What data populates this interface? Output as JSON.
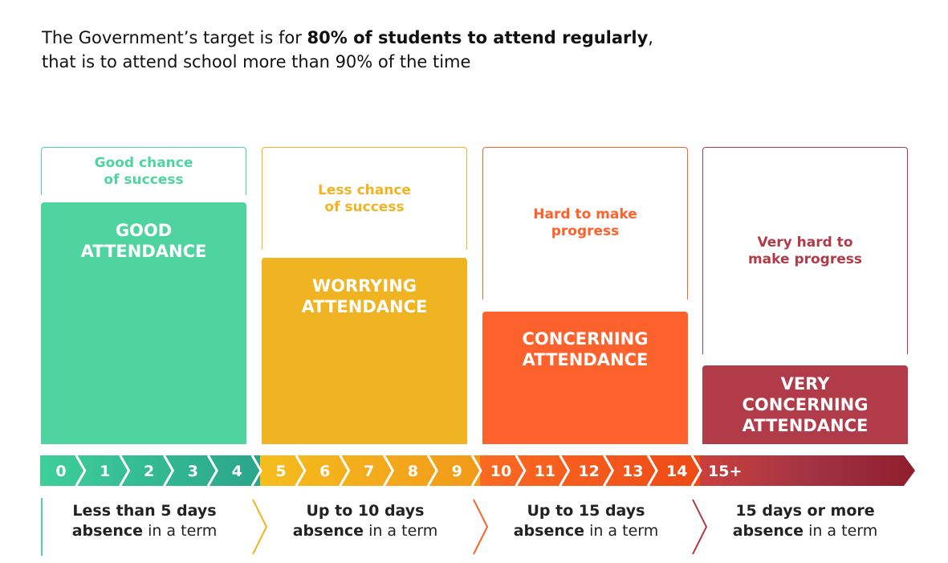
{
  "headline": {
    "prefix": "The Government’s target is for ",
    "bold": "80% of students to attend regularly",
    "suffix": ",",
    "line2": "that is to attend school more than 90% of the time"
  },
  "colors": {
    "good": "#4fd49f",
    "worrying": "#f0b321",
    "concerning": "#fd612c",
    "very_concerning": "#b13b48"
  },
  "categories": [
    {
      "chance_line1": "Good chance",
      "chance_line2": "of success",
      "label_line1": "GOOD",
      "label_line2": "ATTENDANCE",
      "label_line3": "",
      "desc_bold1": "Less than 5 days",
      "desc_bold2": "absence",
      "desc_rest": " in a term"
    },
    {
      "chance_line1": "Less chance",
      "chance_line2": "of success",
      "label_line1": "WORRYING",
      "label_line2": "ATTENDANCE",
      "label_line3": "",
      "desc_bold1": "Up to 10 days",
      "desc_bold2": "absence",
      "desc_rest": " in a term"
    },
    {
      "chance_line1": "Hard to make",
      "chance_line2": "progress",
      "label_line1": "CONCERNING",
      "label_line2": "ATTENDANCE",
      "label_line3": "",
      "desc_bold1": "Up to 15 days",
      "desc_bold2": "absence",
      "desc_rest": " in a term"
    },
    {
      "chance_line1": "Very hard to",
      "chance_line2": "make progress",
      "label_line1": "VERY",
      "label_line2": "CONCERNING",
      "label_line3": "ATTENDANCE",
      "desc_bold1": "15 days or more",
      "desc_bold2": "absence",
      "desc_rest": " in a term"
    }
  ],
  "scale": [
    "0",
    "1",
    "2",
    "3",
    "4",
    "5",
    "6",
    "7",
    "8",
    "9",
    "10",
    "11",
    "12",
    "13",
    "14",
    "15+"
  ]
}
